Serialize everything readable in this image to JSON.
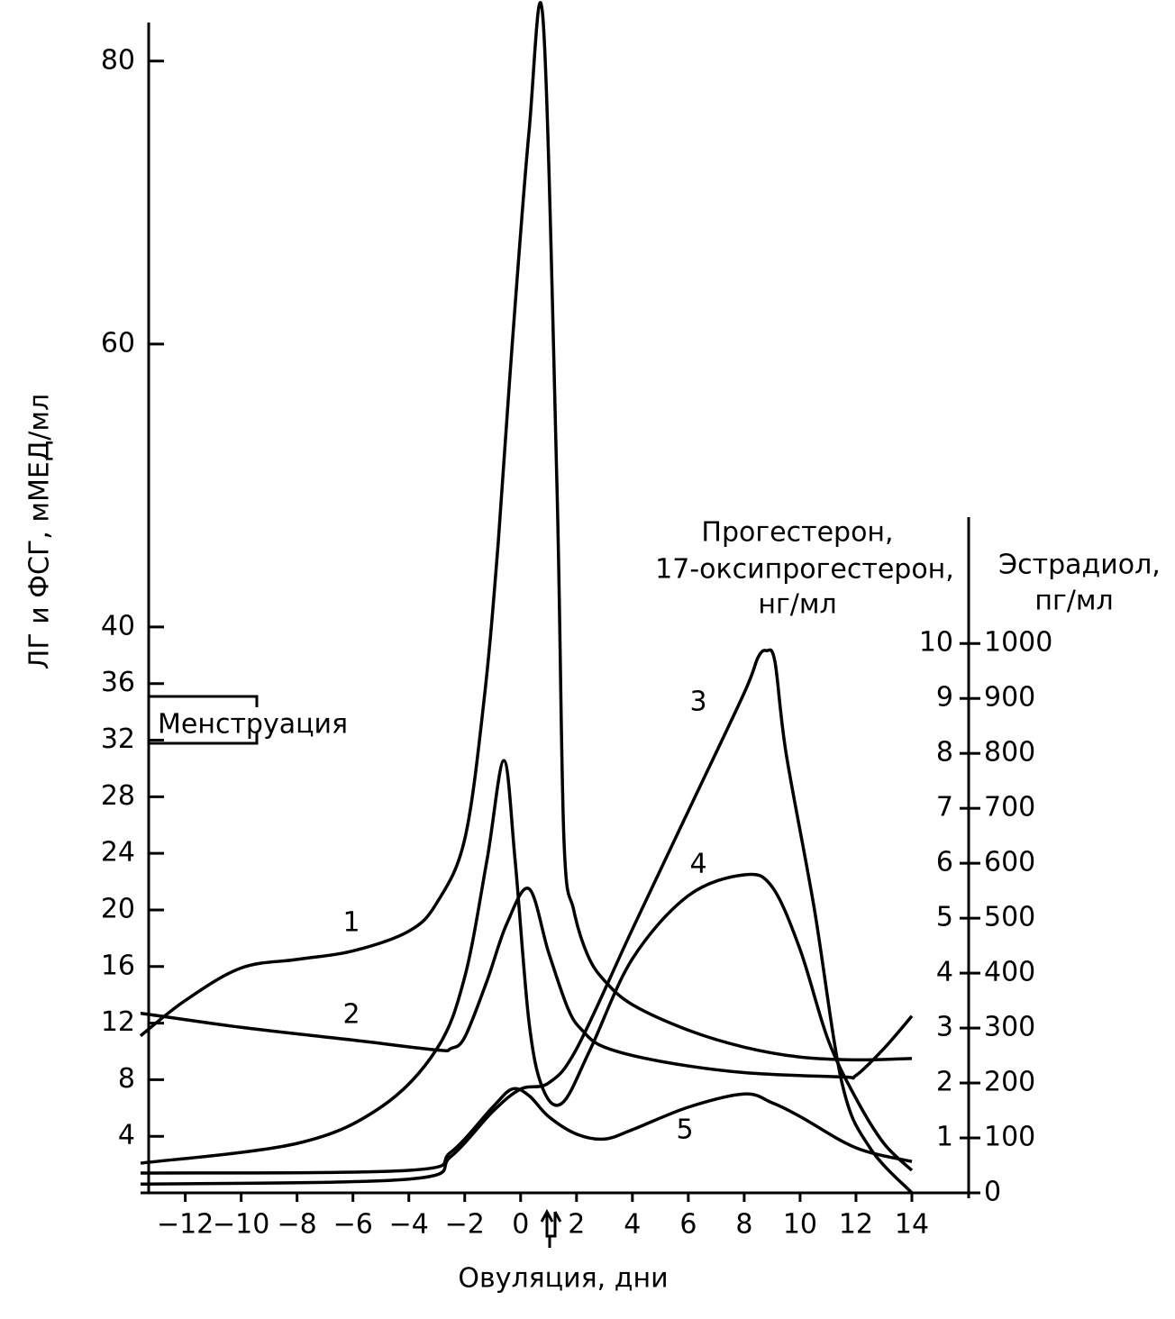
{
  "chart_data": {
    "type": "line",
    "y_label": "ЛГ и ФСГ, мМЕД/мл",
    "x_label": "Овуляция, дни",
    "y2_label": [
      "Прогестерон,",
      "17-оксипрогестерон,",
      "нг/мл"
    ],
    "y3_label": [
      "Эстрадиол,",
      "пг/мл"
    ],
    "annotation": "Менструация",
    "color": "#000000",
    "xlim": [
      -13.6,
      16
    ],
    "xticks": [
      {
        "value": -12,
        "label": "−12"
      },
      {
        "value": -10,
        "label": "−10"
      },
      {
        "value": -8,
        "label": "−8"
      },
      {
        "value": -6,
        "label": "−6"
      },
      {
        "value": -4,
        "label": "−4"
      },
      {
        "value": -2,
        "label": "−2"
      },
      0,
      2,
      4,
      6,
      8,
      10,
      12,
      14
    ],
    "ylim": [
      0,
      84
    ],
    "yticks": [
      4,
      8,
      12,
      16,
      20,
      24,
      28,
      32,
      36,
      40,
      60,
      80
    ],
    "y2lim": [
      0,
      12.3
    ],
    "y2ticks": [
      1,
      2,
      3,
      4,
      5,
      6,
      7,
      8,
      9,
      10
    ],
    "y3lim": [
      0,
      1230
    ],
    "y3ticks": [
      0,
      100,
      200,
      300,
      400,
      500,
      600,
      700,
      800,
      900,
      1000
    ],
    "series": [
      {
        "name": "1",
        "axis": "y",
        "x": [
          -13.6,
          -12,
          -10,
          -8,
          -6,
          -4,
          -3,
          -2,
          -1.3,
          -0.8,
          -0.3,
          0.3,
          0.8,
          1.3,
          1.55,
          1.9,
          2.4,
          3,
          4,
          6,
          8,
          10,
          12,
          14
        ],
        "values": [
          11.1,
          13.6,
          15.9,
          16.5,
          17.1,
          18.5,
          20.5,
          25,
          35,
          46,
          60,
          75,
          83,
          50,
          25,
          20,
          16.8,
          15,
          13.3,
          11.5,
          10.3,
          9.6,
          9.4,
          9.5
        ]
      },
      {
        "name": "2",
        "axis": "y",
        "x": [
          -13.6,
          -10,
          -6,
          -3,
          -2.5,
          -2,
          -1.2,
          -0.5,
          0.3,
          1,
          1.7,
          2.2,
          3,
          5,
          8,
          11.5,
          12,
          13,
          14
        ],
        "values": [
          12.7,
          11.7,
          10.8,
          10.1,
          10.2,
          11,
          15,
          19,
          21.5,
          17,
          13,
          11.5,
          10.3,
          9.3,
          8.5,
          8.2,
          8.3,
          10.2,
          12.5
        ]
      },
      {
        "name": "3",
        "axis": "y2",
        "x": [
          -13.6,
          -4,
          -2.5,
          -1,
          0,
          1,
          2,
          4,
          6,
          8,
          8.5,
          8.8,
          9.1,
          9.5,
          10.5,
          11.5,
          12.5,
          14
        ],
        "values": [
          0.16,
          0.25,
          0.66,
          1.48,
          1.89,
          2.0,
          2.62,
          4.8,
          6.95,
          9.1,
          9.75,
          9.87,
          9.67,
          8.0,
          5.2,
          2.0,
          0.82,
          0
        ]
      },
      {
        "name": "4",
        "axis": "y3",
        "x": [
          -13.6,
          -8,
          -5,
          -3,
          -2,
          -1.2,
          -0.6,
          -0.2,
          0.3,
          0.8,
          1.5,
          2.5,
          4,
          6,
          8,
          9,
          10,
          11,
          12,
          13,
          14
        ],
        "values": [
          54,
          90,
          156,
          262,
          393,
          607,
          787,
          607,
          311,
          189,
          164,
          262,
          426,
          541,
          579,
          557,
          443,
          279,
          172,
          90,
          41
        ]
      },
      {
        "name": "5",
        "axis": "y2",
        "x": [
          -13.6,
          -4,
          -2.5,
          -1,
          -0.3,
          0.3,
          1,
          2,
          3,
          4,
          6,
          8,
          9,
          10,
          12,
          14
        ],
        "values": [
          0.36,
          0.41,
          0.74,
          1.56,
          1.89,
          1.77,
          1.39,
          1.07,
          0.98,
          1.15,
          1.56,
          1.8,
          1.64,
          1.39,
          0.82,
          0.57
        ]
      }
    ]
  }
}
